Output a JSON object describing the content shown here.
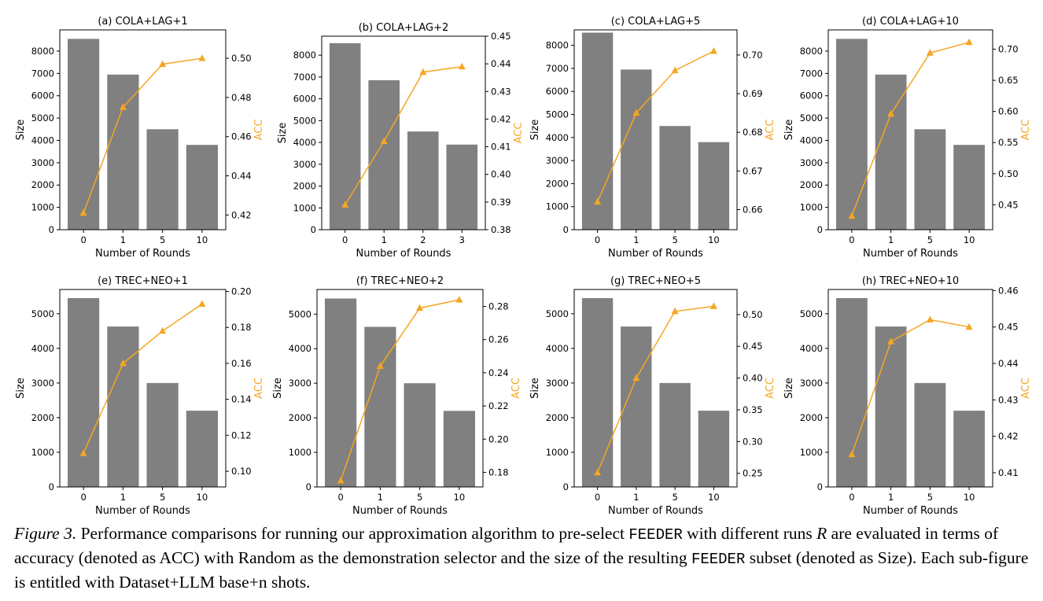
{
  "colors": {
    "bar": "#808080",
    "line": "#f5a623",
    "axis": "#000000"
  },
  "chart_data": [
    {
      "type": "bar",
      "title": "(a) COLA+LAG+1",
      "xlabel": "Number of Rounds",
      "ylabel": "Size",
      "y2label": "ACC",
      "categories": [
        "0",
        "1",
        "5",
        "10"
      ],
      "series": [
        {
          "values": [
            8550,
            6950,
            4500,
            3800
          ]
        },
        {
          "values": [
            0.421,
            0.475,
            0.497,
            0.5
          ]
        }
      ],
      "ylim": [
        0,
        8950
      ],
      "y2lim": [
        0.4125,
        0.5145
      ],
      "yticks": [
        0,
        1000,
        2000,
        3000,
        4000,
        5000,
        6000,
        7000,
        8000
      ],
      "y2ticks": [
        0.42,
        0.44,
        0.46,
        0.48,
        0.5
      ],
      "y2dec": 2
    },
    {
      "type": "bar",
      "title": "(b) COLA+LAG+2",
      "xlabel": "Number of Rounds",
      "ylabel": "Size",
      "y2label": "ACC",
      "categories": [
        "0",
        "1",
        "2",
        "3"
      ],
      "series": [
        {
          "values": [
            8550,
            6850,
            4500,
            3900
          ]
        },
        {
          "values": [
            0.389,
            0.412,
            0.437,
            0.439
          ]
        }
      ],
      "ylim": [
        0,
        8870
      ],
      "y2lim": [
        0.38,
        0.45
      ],
      "yticks": [
        0,
        1000,
        2000,
        3000,
        4000,
        5000,
        6000,
        7000,
        8000
      ],
      "y2ticks": [
        0.38,
        0.39,
        0.4,
        0.41,
        0.42,
        0.43,
        0.44,
        0.45
      ],
      "y2dec": 2
    },
    {
      "type": "bar",
      "title": "(c) COLA+LAG+5",
      "xlabel": "Number of Rounds",
      "ylabel": "Size",
      "y2label": "ACC",
      "categories": [
        "0",
        "1",
        "5",
        "10"
      ],
      "series": [
        {
          "values": [
            8550,
            6950,
            4500,
            3800
          ]
        },
        {
          "values": [
            0.662,
            0.685,
            0.696,
            0.701
          ]
        }
      ],
      "ylim": [
        0,
        8670
      ],
      "y2lim": [
        0.6548,
        0.7065
      ],
      "yticks": [
        0,
        1000,
        2000,
        3000,
        4000,
        5000,
        6000,
        7000,
        8000
      ],
      "y2ticks": [
        0.66,
        0.67,
        0.68,
        0.69,
        0.7
      ],
      "y2dec": 2
    },
    {
      "type": "bar",
      "title": "(d) COLA+LAG+10",
      "xlabel": "Number of Rounds",
      "ylabel": "Size",
      "y2label": "ACC",
      "categories": [
        "0",
        "1",
        "5",
        "10"
      ],
      "series": [
        {
          "values": [
            8550,
            6950,
            4500,
            3800
          ]
        },
        {
          "values": [
            0.432,
            0.596,
            0.694,
            0.711
          ]
        }
      ],
      "ylim": [
        0,
        8950
      ],
      "y2lim": [
        0.41,
        0.731
      ],
      "yticks": [
        0,
        1000,
        2000,
        3000,
        4000,
        5000,
        6000,
        7000,
        8000
      ],
      "y2ticks": [
        0.45,
        0.5,
        0.55,
        0.6,
        0.65,
        0.7
      ],
      "y2dec": 2
    },
    {
      "type": "bar",
      "title": "(e) TREC+NEO+1",
      "xlabel": "Number of Rounds",
      "ylabel": "Size",
      "y2label": "ACC",
      "categories": [
        "0",
        "1",
        "5",
        "10"
      ],
      "series": [
        {
          "values": [
            5450,
            4630,
            3000,
            2200
          ]
        },
        {
          "values": [
            0.11,
            0.16,
            0.178,
            0.193
          ]
        }
      ],
      "ylim": [
        0,
        5700
      ],
      "y2lim": [
        0.0913,
        0.2011
      ],
      "yticks": [
        0,
        1000,
        2000,
        3000,
        4000,
        5000
      ],
      "y2ticks": [
        0.1,
        0.12,
        0.14,
        0.16,
        0.18,
        0.2
      ],
      "y2dec": 2
    },
    {
      "type": "bar",
      "title": "(f) TREC+NEO+2",
      "xlabel": "Number of Rounds",
      "ylabel": "Size",
      "y2label": "ACC",
      "categories": [
        "0",
        "1",
        "5",
        "10"
      ],
      "series": [
        {
          "values": [
            5450,
            4630,
            3000,
            2200
          ]
        },
        {
          "values": [
            0.175,
            0.244,
            0.279,
            0.284
          ]
        }
      ],
      "ylim": [
        0,
        5712
      ],
      "y2lim": [
        0.1712,
        0.2902
      ],
      "yticks": [
        0,
        1000,
        2000,
        3000,
        4000,
        5000
      ],
      "y2ticks": [
        0.18,
        0.2,
        0.22,
        0.24,
        0.26,
        0.28
      ],
      "y2dec": 2
    },
    {
      "type": "bar",
      "title": "(g) TREC+NEO+5",
      "xlabel": "Number of Rounds",
      "ylabel": "Size",
      "y2label": "ACC",
      "categories": [
        "0",
        "1",
        "5",
        "10"
      ],
      "series": [
        {
          "values": [
            5450,
            4630,
            3000,
            2200
          ]
        },
        {
          "values": [
            0.251,
            0.4,
            0.505,
            0.513
          ]
        }
      ],
      "ylim": [
        0,
        5700
      ],
      "y2lim": [
        0.2285,
        0.5395
      ],
      "yticks": [
        0,
        1000,
        2000,
        3000,
        4000,
        5000
      ],
      "y2ticks": [
        0.25,
        0.3,
        0.35,
        0.4,
        0.45,
        0.5
      ],
      "y2dec": 2
    },
    {
      "type": "bar",
      "title": "(h) TREC+NEO+10",
      "xlabel": "Number of Rounds",
      "ylabel": "Size",
      "y2label": "ACC",
      "categories": [
        "0",
        "1",
        "5",
        "10"
      ],
      "series": [
        {
          "values": [
            5450,
            4630,
            3000,
            2200
          ]
        },
        {
          "values": [
            0.415,
            0.446,
            0.452,
            0.45
          ]
        }
      ],
      "ylim": [
        0,
        5700
      ],
      "y2lim": [
        0.4061,
        0.4603
      ],
      "yticks": [
        0,
        1000,
        2000,
        3000,
        4000,
        5000
      ],
      "y2ticks": [
        0.41,
        0.42,
        0.43,
        0.44,
        0.45,
        0.46
      ],
      "y2dec": 2
    }
  ],
  "caption": {
    "lead": "Figure 3.",
    "part1": " Performance comparisons for running our approximation algorithm to pre-select ",
    "term1": "FEEDER",
    "part2": " with different runs ",
    "math": "R",
    "part3": " are evaluated in terms of accuracy (denoted as ACC) with Random as the demonstration selector and the size of the resulting ",
    "term2": "FEEDER",
    "part4": " subset (denoted as Size). Each sub-figure is entitled with Dataset+LLM base+n shots."
  }
}
